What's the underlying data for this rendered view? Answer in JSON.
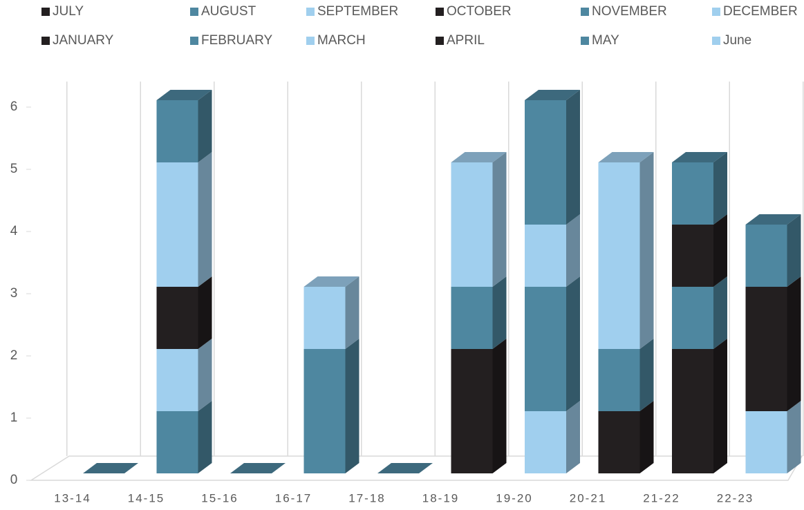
{
  "chart_data": {
    "type": "bar3d_stacked",
    "categories": [
      "13-14",
      "14-15",
      "15-16",
      "16-17",
      "17-18",
      "18-19",
      "19-20",
      "20-21",
      "21-22",
      "22-23"
    ],
    "series": [
      {
        "name": "JULY",
        "color": "#231f20",
        "values": [
          0,
          0,
          0,
          0,
          0,
          2,
          0,
          1,
          2,
          0
        ]
      },
      {
        "name": "AUGUST",
        "color": "#4e87a0",
        "values": [
          0,
          1,
          0,
          2,
          0,
          1,
          0,
          1,
          1,
          0
        ]
      },
      {
        "name": "SEPTEMBER",
        "color": "#a0cfee",
        "values": [
          0,
          1,
          0,
          1,
          0,
          2,
          1,
          3,
          0,
          1
        ]
      },
      {
        "name": "OCTOBER",
        "color": "#231f20",
        "values": [
          0,
          1,
          0,
          0,
          0,
          0,
          0,
          0,
          1,
          2
        ]
      },
      {
        "name": "NOVEMBER",
        "color": "#4e87a0",
        "values": [
          0,
          0,
          0,
          0,
          0,
          0,
          2,
          0,
          1,
          1
        ]
      },
      {
        "name": "DECEMBER",
        "color": "#a0cfee",
        "values": [
          0,
          2,
          0,
          0,
          0,
          0,
          1,
          0,
          0,
          0
        ]
      },
      {
        "name": "JANUARY",
        "color": "#231f20",
        "values": [
          0,
          0,
          0,
          0,
          0,
          0,
          0,
          0,
          0,
          0
        ]
      },
      {
        "name": "FEBRUARY",
        "color": "#4e87a0",
        "values": [
          0,
          1,
          0,
          0,
          0,
          0,
          2,
          0,
          0,
          0
        ]
      },
      {
        "name": "MARCH",
        "color": "#a0cfee",
        "values": [
          0,
          0,
          0,
          0,
          0,
          0,
          0,
          0,
          0,
          0
        ]
      },
      {
        "name": "APRIL",
        "color": "#231f20",
        "values": [
          0,
          0,
          0,
          0,
          0,
          0,
          0,
          0,
          0,
          0
        ]
      },
      {
        "name": "MAY",
        "color": "#4e87a0",
        "values": [
          0,
          0,
          0,
          0,
          0,
          0,
          0,
          0,
          0,
          0
        ]
      },
      {
        "name": "June",
        "color": "#a0cfee",
        "values": [
          0,
          0,
          0,
          0,
          0,
          0,
          0,
          0,
          0,
          0
        ]
      }
    ],
    "ylim": [
      0,
      6
    ],
    "yticks": [
      0,
      1,
      2,
      3,
      4,
      5,
      6
    ],
    "legend": "top"
  }
}
